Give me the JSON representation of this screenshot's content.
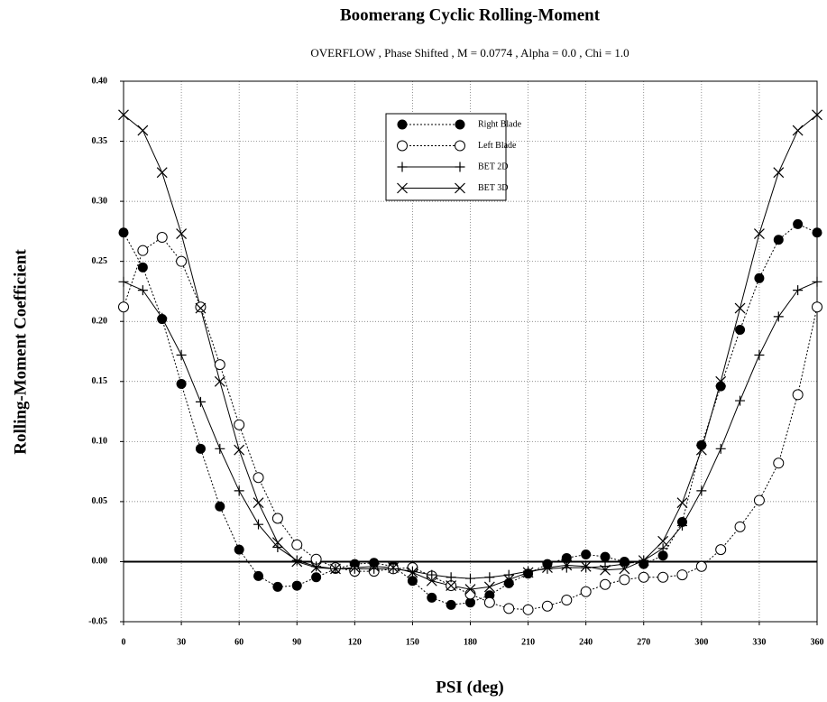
{
  "chart_data": {
    "type": "line",
    "title": "Boomerang Cyclic Rolling-Moment",
    "subtitle": "OVERFLOW , Phase Shifted , M = 0.0774 , Alpha = 0.0 , Chi = 1.0",
    "x_label": "PSI (deg)",
    "y_label": "Rolling-Moment Coefficient",
    "x": [
      0,
      10,
      20,
      30,
      40,
      50,
      60,
      70,
      80,
      90,
      100,
      110,
      120,
      130,
      140,
      150,
      160,
      170,
      180,
      190,
      200,
      210,
      220,
      230,
      240,
      250,
      260,
      270,
      280,
      290,
      300,
      310,
      320,
      330,
      340,
      350,
      360
    ],
    "series": [
      {
        "name": "Right Blade",
        "color": "#000000",
        "marker": "filled-circle",
        "line_style": "dotted",
        "values": [
          0.274,
          0.245,
          0.202,
          0.148,
          0.094,
          0.046,
          0.01,
          -0.012,
          -0.021,
          -0.02,
          -0.013,
          -0.006,
          -0.002,
          -0.001,
          -0.004,
          -0.016,
          -0.03,
          -0.036,
          -0.034,
          -0.028,
          -0.018,
          -0.01,
          -0.002,
          0.003,
          0.006,
          0.004,
          0.0,
          -0.002,
          0.005,
          0.033,
          0.097,
          0.146,
          0.193,
          0.236,
          0.268,
          0.281,
          0.274
        ]
      },
      {
        "name": "Left Blade",
        "color": "#000000",
        "marker": "open-circle",
        "line_style": "dotted",
        "values": [
          0.212,
          0.259,
          0.27,
          0.25,
          0.212,
          0.164,
          0.114,
          0.07,
          0.036,
          0.014,
          0.002,
          -0.005,
          -0.008,
          -0.008,
          -0.006,
          -0.005,
          -0.012,
          -0.02,
          -0.027,
          -0.034,
          -0.039,
          -0.04,
          -0.037,
          -0.032,
          -0.025,
          -0.019,
          -0.015,
          -0.013,
          -0.013,
          -0.011,
          -0.004,
          0.01,
          0.029,
          0.051,
          0.082,
          0.139,
          0.212
        ]
      },
      {
        "name": "BET 2D",
        "color": "#000000",
        "marker": "plus",
        "line_style": "solid",
        "values": [
          0.233,
          0.226,
          0.203,
          0.172,
          0.133,
          0.094,
          0.059,
          0.031,
          0.012,
          0.001,
          -0.004,
          -0.006,
          -0.006,
          -0.006,
          -0.006,
          -0.008,
          -0.011,
          -0.013,
          -0.014,
          -0.013,
          -0.011,
          -0.008,
          -0.006,
          -0.005,
          -0.005,
          -0.004,
          -0.002,
          0.001,
          0.011,
          0.03,
          0.059,
          0.094,
          0.134,
          0.172,
          0.204,
          0.226,
          0.233
        ]
      },
      {
        "name": "BET 3D",
        "color": "#000000",
        "marker": "cross",
        "line_style": "solid",
        "values": [
          0.372,
          0.359,
          0.324,
          0.273,
          0.211,
          0.15,
          0.093,
          0.049,
          0.016,
          0.0,
          -0.005,
          -0.006,
          -0.005,
          -0.004,
          -0.005,
          -0.009,
          -0.016,
          -0.02,
          -0.023,
          -0.021,
          -0.015,
          -0.009,
          -0.005,
          -0.003,
          -0.004,
          -0.007,
          -0.006,
          0.001,
          0.017,
          0.049,
          0.093,
          0.15,
          0.211,
          0.273,
          0.324,
          0.359,
          0.372
        ]
      }
    ],
    "xlim": [
      0,
      360
    ],
    "xticks": [
      0,
      30,
      60,
      90,
      120,
      150,
      180,
      210,
      240,
      270,
      300,
      330,
      360
    ],
    "ylim": [
      -0.05,
      0.4
    ],
    "yticks": [
      {
        "value": -0.05,
        "label": "-0.05"
      },
      {
        "value": 0,
        "label": "0.00"
      },
      {
        "value": 0.05,
        "label": "0.05"
      },
      {
        "value": 0.1,
        "label": "0.10"
      },
      {
        "value": 0.15,
        "label": "0.15"
      },
      {
        "value": 0.2,
        "label": "0.20"
      },
      {
        "value": 0.25,
        "label": "0.25"
      },
      {
        "value": 0.3,
        "label": "0.30"
      },
      {
        "value": 0.35,
        "label": "0.35"
      },
      {
        "value": 0.4,
        "label": "0.40"
      }
    ],
    "grid": true,
    "legend": "top"
  }
}
